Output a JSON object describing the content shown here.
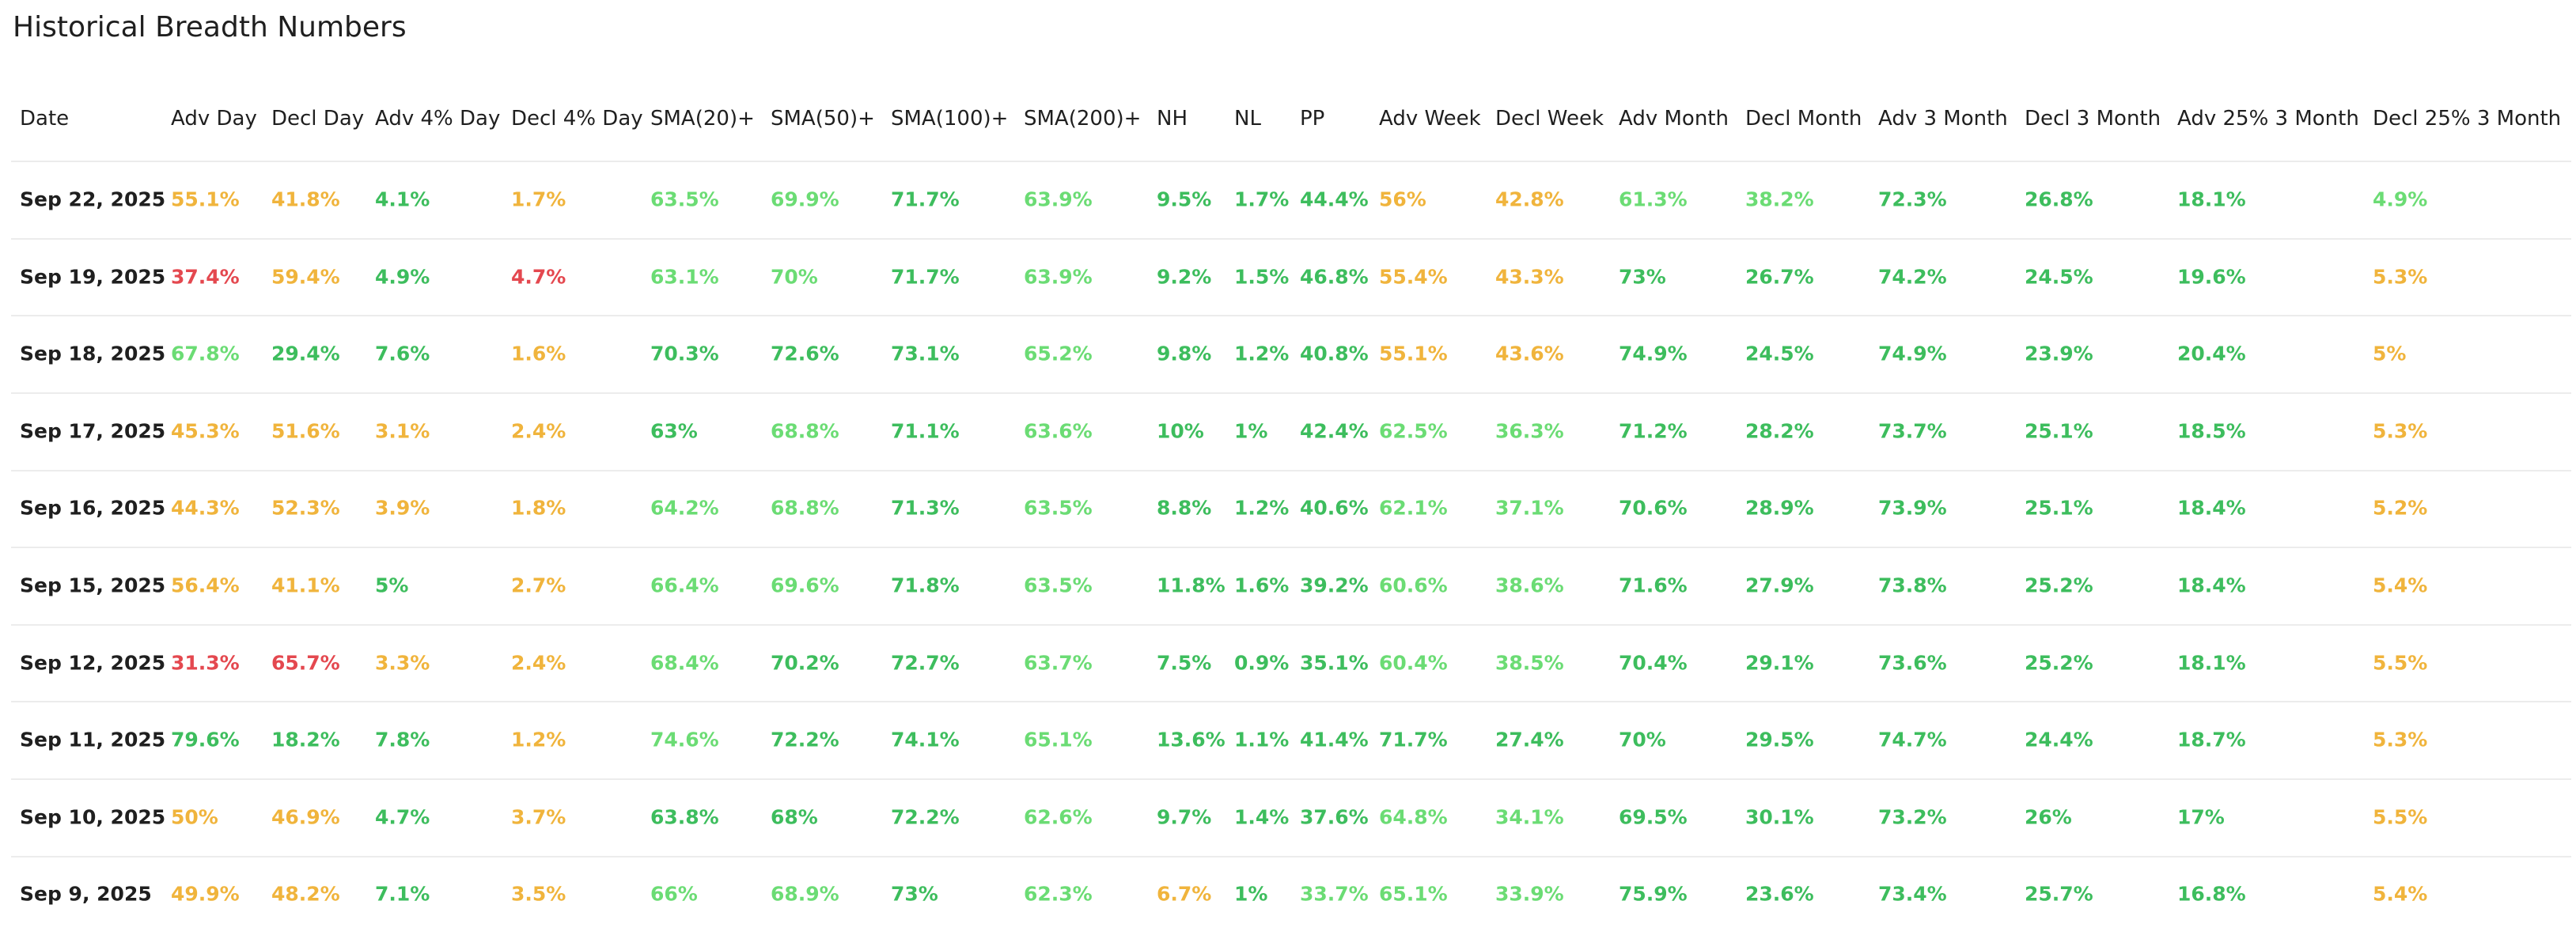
{
  "title": "Historical Breadth Numbers",
  "table": {
    "headers": [
      "Date",
      "Adv Day",
      "Decl Day",
      "Adv 4% Day",
      "Decl 4% Day",
      "SMA(20)+",
      "SMA(50)+",
      "SMA(100)+",
      "SMA(200)+",
      "NH",
      "NL",
      "PP",
      "Adv Week",
      "Decl Week",
      "Adv Month",
      "Decl Month",
      "Adv 3 Month",
      "Decl 3 Month",
      "Adv 25% 3 Month",
      "Decl 25% 3 Month"
    ],
    "rows": [
      [
        "Sep 22, 2025",
        "55.1%",
        "41.8%",
        "4.1%",
        "1.7%",
        "63.5%",
        "69.9%",
        "71.7%",
        "63.9%",
        "9.5%",
        "1.7%",
        "44.4%",
        "56%",
        "42.8%",
        "61.3%",
        "38.2%",
        "72.3%",
        "26.8%",
        "18.1%",
        "4.9%"
      ],
      [
        "Sep 19, 2025",
        "37.4%",
        "59.4%",
        "4.9%",
        "4.7%",
        "63.1%",
        "70%",
        "71.7%",
        "63.9%",
        "9.2%",
        "1.5%",
        "46.8%",
        "55.4%",
        "43.3%",
        "73%",
        "26.7%",
        "74.2%",
        "24.5%",
        "19.6%",
        "5.3%"
      ],
      [
        "Sep 18, 2025",
        "67.8%",
        "29.4%",
        "7.6%",
        "1.6%",
        "70.3%",
        "72.6%",
        "73.1%",
        "65.2%",
        "9.8%",
        "1.2%",
        "40.8%",
        "55.1%",
        "43.6%",
        "74.9%",
        "24.5%",
        "74.9%",
        "23.9%",
        "20.4%",
        "5%"
      ],
      [
        "Sep 17, 2025",
        "45.3%",
        "51.6%",
        "3.1%",
        "2.4%",
        "63%",
        "68.8%",
        "71.1%",
        "63.6%",
        "10%",
        "1%",
        "42.4%",
        "62.5%",
        "36.3%",
        "71.2%",
        "28.2%",
        "73.7%",
        "25.1%",
        "18.5%",
        "5.3%"
      ],
      [
        "Sep 16, 2025",
        "44.3%",
        "52.3%",
        "3.9%",
        "1.8%",
        "64.2%",
        "68.8%",
        "71.3%",
        "63.5%",
        "8.8%",
        "1.2%",
        "40.6%",
        "62.1%",
        "37.1%",
        "70.6%",
        "28.9%",
        "73.9%",
        "25.1%",
        "18.4%",
        "5.2%"
      ],
      [
        "Sep 15, 2025",
        "56.4%",
        "41.1%",
        "5%",
        "2.7%",
        "66.4%",
        "69.6%",
        "71.8%",
        "63.5%",
        "11.8%",
        "1.6%",
        "39.2%",
        "60.6%",
        "38.6%",
        "71.6%",
        "27.9%",
        "73.8%",
        "25.2%",
        "18.4%",
        "5.4%"
      ],
      [
        "Sep 12, 2025",
        "31.3%",
        "65.7%",
        "3.3%",
        "2.4%",
        "68.4%",
        "70.2%",
        "72.7%",
        "63.7%",
        "7.5%",
        "0.9%",
        "35.1%",
        "60.4%",
        "38.5%",
        "70.4%",
        "29.1%",
        "73.6%",
        "25.2%",
        "18.1%",
        "5.5%"
      ],
      [
        "Sep 11, 2025",
        "79.6%",
        "18.2%",
        "7.8%",
        "1.2%",
        "74.6%",
        "72.2%",
        "74.1%",
        "65.1%",
        "13.6%",
        "1.1%",
        "41.4%",
        "71.7%",
        "27.4%",
        "70%",
        "29.5%",
        "74.7%",
        "24.4%",
        "18.7%",
        "5.3%"
      ],
      [
        "Sep 10, 2025",
        "50%",
        "46.9%",
        "4.7%",
        "3.7%",
        "63.8%",
        "68%",
        "72.2%",
        "62.6%",
        "9.7%",
        "1.4%",
        "37.6%",
        "64.8%",
        "34.1%",
        "69.5%",
        "30.1%",
        "73.2%",
        "26%",
        "17%",
        "5.5%"
      ],
      [
        "Sep 9, 2025",
        "49.9%",
        "48.2%",
        "7.1%",
        "3.5%",
        "66%",
        "68.9%",
        "73%",
        "62.3%",
        "6.7%",
        "1%",
        "33.7%",
        "65.1%",
        "33.9%",
        "75.9%",
        "23.6%",
        "73.4%",
        "25.7%",
        "16.8%",
        "5.4%"
      ]
    ],
    "cell_colors": [
      [
        "#1f1f1f",
        "#f0b43c",
        "#f0b43c",
        "#3dbd5d",
        "#f0b43c",
        "#6bdc74",
        "#6bdc74",
        "#3dbd5d",
        "#6bdc74",
        "#3dbd5d",
        "#3dbd5d",
        "#3dbd5d",
        "#f0b43c",
        "#f0b43c",
        "#6bdc74",
        "#6bdc74",
        "#3dbd5d",
        "#3dbd5d",
        "#3dbd5d",
        "#6bdc74"
      ],
      [
        "#1f1f1f",
        "#e4484f",
        "#f0b43c",
        "#3dbd5d",
        "#e4484f",
        "#6bdc74",
        "#6bdc74",
        "#3dbd5d",
        "#6bdc74",
        "#3dbd5d",
        "#3dbd5d",
        "#3dbd5d",
        "#f0b43c",
        "#f0b43c",
        "#3dbd5d",
        "#3dbd5d",
        "#3dbd5d",
        "#3dbd5d",
        "#3dbd5d",
        "#f0b43c"
      ],
      [
        "#1f1f1f",
        "#6bdc74",
        "#3dbd5d",
        "#3dbd5d",
        "#f0b43c",
        "#3dbd5d",
        "#3dbd5d",
        "#3dbd5d",
        "#6bdc74",
        "#3dbd5d",
        "#3dbd5d",
        "#3dbd5d",
        "#f0b43c",
        "#f0b43c",
        "#3dbd5d",
        "#3dbd5d",
        "#3dbd5d",
        "#3dbd5d",
        "#3dbd5d",
        "#f0b43c"
      ],
      [
        "#1f1f1f",
        "#f0b43c",
        "#f0b43c",
        "#f0b43c",
        "#f0b43c",
        "#3dbd5d",
        "#6bdc74",
        "#3dbd5d",
        "#6bdc74",
        "#3dbd5d",
        "#3dbd5d",
        "#3dbd5d",
        "#6bdc74",
        "#6bdc74",
        "#3dbd5d",
        "#3dbd5d",
        "#3dbd5d",
        "#3dbd5d",
        "#3dbd5d",
        "#f0b43c"
      ],
      [
        "#1f1f1f",
        "#f0b43c",
        "#f0b43c",
        "#f0b43c",
        "#f0b43c",
        "#6bdc74",
        "#6bdc74",
        "#3dbd5d",
        "#6bdc74",
        "#3dbd5d",
        "#3dbd5d",
        "#3dbd5d",
        "#6bdc74",
        "#6bdc74",
        "#3dbd5d",
        "#3dbd5d",
        "#3dbd5d",
        "#3dbd5d",
        "#3dbd5d",
        "#f0b43c"
      ],
      [
        "#1f1f1f",
        "#f0b43c",
        "#f0b43c",
        "#3dbd5d",
        "#f0b43c",
        "#6bdc74",
        "#6bdc74",
        "#3dbd5d",
        "#6bdc74",
        "#3dbd5d",
        "#3dbd5d",
        "#3dbd5d",
        "#6bdc74",
        "#6bdc74",
        "#3dbd5d",
        "#3dbd5d",
        "#3dbd5d",
        "#3dbd5d",
        "#3dbd5d",
        "#f0b43c"
      ],
      [
        "#1f1f1f",
        "#e4484f",
        "#e4484f",
        "#f0b43c",
        "#f0b43c",
        "#6bdc74",
        "#3dbd5d",
        "#3dbd5d",
        "#6bdc74",
        "#3dbd5d",
        "#3dbd5d",
        "#3dbd5d",
        "#6bdc74",
        "#6bdc74",
        "#3dbd5d",
        "#3dbd5d",
        "#3dbd5d",
        "#3dbd5d",
        "#3dbd5d",
        "#f0b43c"
      ],
      [
        "#1f1f1f",
        "#3dbd5d",
        "#3dbd5d",
        "#3dbd5d",
        "#f0b43c",
        "#6bdc74",
        "#3dbd5d",
        "#3dbd5d",
        "#6bdc74",
        "#3dbd5d",
        "#3dbd5d",
        "#3dbd5d",
        "#3dbd5d",
        "#3dbd5d",
        "#3dbd5d",
        "#3dbd5d",
        "#3dbd5d",
        "#3dbd5d",
        "#3dbd5d",
        "#f0b43c"
      ],
      [
        "#1f1f1f",
        "#f0b43c",
        "#f0b43c",
        "#3dbd5d",
        "#f0b43c",
        "#3dbd5d",
        "#3dbd5d",
        "#3dbd5d",
        "#6bdc74",
        "#3dbd5d",
        "#3dbd5d",
        "#3dbd5d",
        "#6bdc74",
        "#6bdc74",
        "#3dbd5d",
        "#3dbd5d",
        "#3dbd5d",
        "#3dbd5d",
        "#3dbd5d",
        "#f0b43c"
      ],
      [
        "#1f1f1f",
        "#f0b43c",
        "#f0b43c",
        "#3dbd5d",
        "#f0b43c",
        "#6bdc74",
        "#6bdc74",
        "#3dbd5d",
        "#6bdc74",
        "#f0b43c",
        "#3dbd5d",
        "#6bdc74",
        "#6bdc74",
        "#6bdc74",
        "#3dbd5d",
        "#3dbd5d",
        "#3dbd5d",
        "#3dbd5d",
        "#3dbd5d",
        "#f0b43c"
      ]
    ]
  }
}
